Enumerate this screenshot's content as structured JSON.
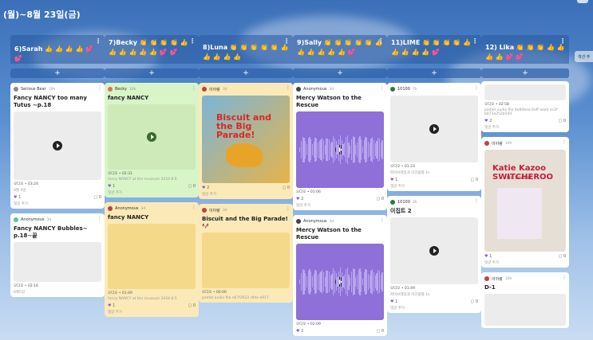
{
  "page": {
    "title": "(월)~8월 23일(금)",
    "side_label": "섹션 추"
  },
  "columns": [
    {
      "title": "6)Sarah 👍 👍 👍 👍 💕 💕",
      "cards": [
        {
          "author": "Serious Bear",
          "time": "10h",
          "title": "Fancy NANCY too many Tutus ~p.18",
          "type": "audio",
          "file": "오디오 • 03:24",
          "desc": "8월 4일",
          "likes": "1",
          "comments": "0",
          "comment_label": "댓글 추가"
        },
        {
          "author": "Anonymous",
          "time": "3d",
          "title": "Fancy NANCY Bubbles~ p.18~끝",
          "type": "audio",
          "file": "오디오 • 02:16",
          "desc": "8월5일"
        }
      ]
    },
    {
      "title": "7)Becky 👏 👏 👏 👏 👍 👍 👍 👍 👍 👍 💕 💕",
      "cards": [
        {
          "author": "Becky",
          "time": "10h",
          "title": "fancy NANCY",
          "type": "audio",
          "color": "green",
          "file": "오디오 • 02:31",
          "desc": "fancy NANCY at the museum 2024.8.6",
          "likes": "1",
          "comments": "0",
          "comment_label": "댓글 추가"
        },
        {
          "author": "Anonymous",
          "time": "3d",
          "title": "fancy NANCY",
          "type": "audio",
          "color": "yellow",
          "file": "오디오 • 01:49",
          "desc": "fancy NANCY at the museum 2024.8.5",
          "likes": "1",
          "comments": "0",
          "comment_label": "댓글 추가"
        }
      ]
    },
    {
      "title": "8)Luna 👏 👏 👏 👏 👏 👍 👍 👍 👍 👍",
      "cards": [
        {
          "author": "이아랑",
          "time": "3d",
          "title": "",
          "type": "book",
          "book_title": "Biscuit and the Big Parade!",
          "color": "yellow",
          "likes": "2",
          "comments": "0",
          "comment_label": "댓글 추가"
        },
        {
          "author": "이아랑",
          "time": "3d",
          "title": "Biscuit and the Big Parade! 🐶",
          "type": "audio",
          "color": "yellow",
          "file": "오디오 • 00:00",
          "desc": "padlet audio file e67f2622 dfde e917"
        }
      ]
    },
    {
      "title": "9)Sally 👏 👏 👏 👏 👏 👍 👍 👍 👍 👍 👍 💕",
      "cards": [
        {
          "author": "Anonymous",
          "time": "3d",
          "title": "Mercy Watson to the Rescue",
          "type": "wave",
          "file": "오디오 • 01:06",
          "likes": "2",
          "comments": "0",
          "comment_label": "댓글 추가"
        },
        {
          "author": "Anonymous",
          "time": "3d",
          "title": "Mercy Watson to the Rescue",
          "type": "wave",
          "file": "오디오 • 02:09",
          "likes": "2",
          "comments": "0"
        }
      ]
    },
    {
      "title": "11)LIME 👏 👏 👏 👏 👍 👍 👍 👍 👍 💕",
      "cards": [
        {
          "author": "10100",
          "time": "7h",
          "title": "",
          "type": "audio",
          "file": "오디오 • 01:23",
          "desc": "파이브레일과 미끄럼틀 1s",
          "likes": "1",
          "comments": "0",
          "comment_label": "댓글 추가"
        },
        {
          "author": "10100",
          "time": "3h",
          "title": "이집트 2",
          "type": "audio",
          "file": "오디오 • 01:49",
          "desc": "파이브레일과 미끄럼틀 1s",
          "likes": "1",
          "comments": "0",
          "comment_label": "댓글 추가"
        }
      ]
    },
    {
      "title": "12) Lika 👏 👏 👏 👍 👍 👍 👍 💕 💕",
      "cards": [
        {
          "author": "",
          "time": "",
          "title": "",
          "type": "audio",
          "file": "오디오 • 02:58",
          "desc": "padlet audio file 6e80bea 6eff aaed ec2f b873a252b54d",
          "likes": "2",
          "comments": "0",
          "comment_label": "댓글 추가"
        },
        {
          "author": "이아랑",
          "time": "10h",
          "title": "",
          "type": "book",
          "book_title": "Katie Kazoo SWITCHEROO",
          "book_sub": "No Bones!",
          "likes": "1",
          "comments": "0",
          "comment_label": "댓글 추가"
        },
        {
          "author": "이아랑",
          "time": "10h",
          "title": "D-1",
          "type": "audio"
        }
      ]
    }
  ],
  "add_label": "+"
}
